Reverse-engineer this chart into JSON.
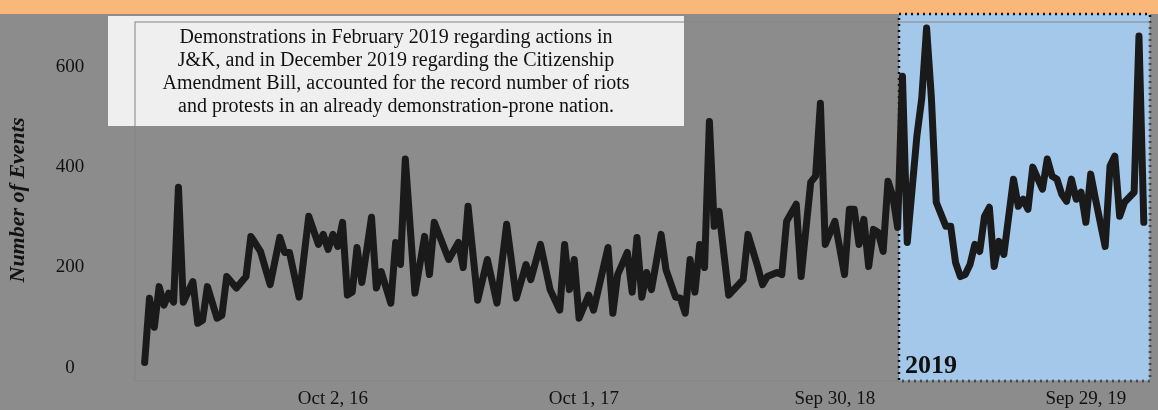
{
  "chart_data": {
    "type": "line",
    "ylabel": "Number of Events",
    "annotations": [
      "Demonstrations in February 2019 regarding actions in J&K, and in December 2019 regarding the Citizenship Amendment Bill, accounted for the record number of riots and protests in an already demonstration-prone nation."
    ],
    "xlim": [
      "2015-12-20",
      "2019-12-31"
    ],
    "xticks": [
      {
        "value": "2016-10-02",
        "label": "Oct 2, 16"
      },
      {
        "value": "2017-10-01",
        "label": "Oct 1, 17"
      },
      {
        "value": "2018-09-30",
        "label": "Sep 30, 18"
      },
      {
        "value": "2019-09-29",
        "label": "Sep 29, 19"
      }
    ],
    "ylim": [
      -25,
      690
    ],
    "yticks": [
      0,
      200,
      400,
      600
    ],
    "grid": false,
    "marker": "none",
    "line_style": "solid",
    "bands": [
      {
        "axis": "x",
        "from": "2019-01-01",
        "to": "2019-12-31",
        "label": "2019",
        "color": "#a4c8ea"
      }
    ],
    "series": [
      {
        "color": "#1a1a1a",
        "x": [
          "2016-01-03",
          "2016-01-10",
          "2016-01-17",
          "2016-01-24",
          "2016-01-31",
          "2016-02-07",
          "2016-02-14",
          "2016-02-21",
          "2016-02-28",
          "2016-03-13",
          "2016-03-20",
          "2016-03-27",
          "2016-04-03",
          "2016-04-17",
          "2016-04-24",
          "2016-05-01",
          "2016-05-15",
          "2016-05-29",
          "2016-06-05",
          "2016-06-19",
          "2016-07-03",
          "2016-07-17",
          "2016-07-24",
          "2016-07-31",
          "2016-08-14",
          "2016-08-28",
          "2016-09-11",
          "2016-09-18",
          "2016-09-25",
          "2016-10-02",
          "2016-10-09",
          "2016-10-16",
          "2016-10-23",
          "2016-10-30",
          "2016-11-06",
          "2016-11-13",
          "2016-11-27",
          "2016-12-04",
          "2016-12-11",
          "2016-12-25",
          "2017-01-01",
          "2017-01-08",
          "2017-01-15",
          "2017-01-29",
          "2017-02-12",
          "2017-02-19",
          "2017-02-26",
          "2017-03-19",
          "2017-04-02",
          "2017-04-09",
          "2017-04-16",
          "2017-04-30",
          "2017-05-14",
          "2017-05-28",
          "2017-06-11",
          "2017-06-25",
          "2017-07-09",
          "2017-07-16",
          "2017-07-30",
          "2017-08-13",
          "2017-08-27",
          "2017-09-03",
          "2017-09-10",
          "2017-09-17",
          "2017-09-24",
          "2017-10-08",
          "2017-10-15",
          "2017-11-05",
          "2017-11-12",
          "2017-11-19",
          "2017-12-03",
          "2017-12-10",
          "2017-12-17",
          "2017-12-24",
          "2017-12-31",
          "2018-01-07",
          "2018-01-21",
          "2018-01-28",
          "2018-02-11",
          "2018-02-18",
          "2018-02-25",
          "2018-03-04",
          "2018-03-11",
          "2018-03-18",
          "2018-03-25",
          "2018-04-01",
          "2018-04-08",
          "2018-04-15",
          "2018-04-29",
          "2018-05-20",
          "2018-05-27",
          "2018-06-10",
          "2018-06-17",
          "2018-06-24",
          "2018-07-08",
          "2018-07-15",
          "2018-07-22",
          "2018-08-05",
          "2018-08-12",
          "2018-08-26",
          "2018-09-02",
          "2018-09-09",
          "2018-09-16",
          "2018-09-30",
          "2018-10-14",
          "2018-10-21",
          "2018-10-28",
          "2018-11-04",
          "2018-11-11",
          "2018-11-18",
          "2018-11-25",
          "2018-12-02",
          "2018-12-09",
          "2018-12-16",
          "2018-12-23",
          "2018-12-30",
          "2019-01-06",
          "2019-01-13",
          "2019-01-27",
          "2019-02-03",
          "2019-02-10",
          "2019-02-17",
          "2019-02-24",
          "2019-03-10",
          "2019-03-17",
          "2019-03-24",
          "2019-03-31",
          "2019-04-07",
          "2019-04-14",
          "2019-04-21",
          "2019-04-28",
          "2019-05-05",
          "2019-05-12",
          "2019-05-19",
          "2019-05-26",
          "2019-06-02",
          "2019-06-16",
          "2019-06-23",
          "2019-06-30",
          "2019-07-07",
          "2019-07-14",
          "2019-07-28",
          "2019-08-04",
          "2019-08-11",
          "2019-08-18",
          "2019-08-25",
          "2019-09-01",
          "2019-09-08",
          "2019-09-15",
          "2019-09-22",
          "2019-09-29",
          "2019-10-06",
          "2019-10-13",
          "2019-10-27",
          "2019-11-03",
          "2019-11-10",
          "2019-11-17",
          "2019-11-24",
          "2019-12-08",
          "2019-12-15",
          "2019-12-22"
        ],
        "values": [
          12,
          140,
          82,
          163,
          126,
          150,
          132,
          361,
          132,
          173,
          90,
          96,
          163,
          100,
          106,
          183,
          160,
          183,
          263,
          233,
          167,
          261,
          231,
          231,
          142,
          303,
          247,
          267,
          237,
          267,
          243,
          291,
          146,
          152,
          241,
          171,
          301,
          160,
          193,
          130,
          251,
          207,
          417,
          150,
          263,
          187,
          291,
          217,
          251,
          201,
          323,
          136,
          217,
          130,
          287,
          140,
          207,
          177,
          247,
          157,
          116,
          247,
          157,
          217,
          100,
          146,
          116,
          241,
          110,
          187,
          231,
          152,
          261,
          142,
          191,
          157,
          267,
          197,
          142,
          140,
          110,
          217,
          152,
          247,
          201,
          492,
          283,
          313,
          146,
          177,
          267,
          203,
          167,
          183,
          191,
          187,
          293,
          327,
          183,
          371,
          383,
          528,
          247,
          293,
          187,
          317,
          317,
          247,
          297,
          203,
          277,
          271,
          233,
          373,
          343,
          281,
          582,
          251,
          464,
          538,
          678,
          538,
          331,
          283,
          283,
          211,
          183,
          187,
          207,
          247,
          233,
          303,
          321,
          203,
          253,
          227,
          377,
          323,
          337,
          317,
          401,
          357,
          417,
          383,
          377,
          347,
          333,
          377,
          337,
          351,
          291,
          387,
          337,
          243,
          403,
          423,
          303,
          331,
          351,
          662,
          291
        ]
      }
    ]
  }
}
